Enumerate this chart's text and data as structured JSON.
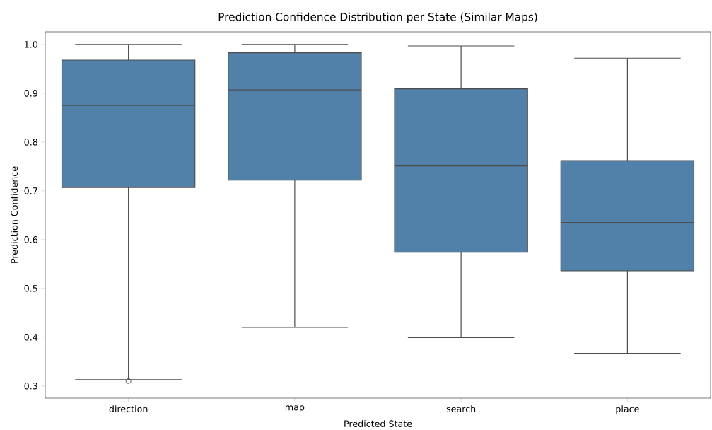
{
  "chart_data": {
    "type": "box",
    "title": "Prediction Confidence Distribution per State (Similar Maps)",
    "xlabel": "Predicted State",
    "ylabel": "Prediction Confidence",
    "categories": [
      "direction",
      "map",
      "search",
      "place"
    ],
    "color": "#5181a9",
    "boxes": [
      {
        "low": 0.313,
        "q1": 0.707,
        "median": 0.875,
        "q3": 0.968,
        "high": 1.0,
        "outliers": [
          0.31
        ]
      },
      {
        "low": 0.42,
        "q1": 0.722,
        "median": 0.907,
        "q3": 0.983,
        "high": 1.0
      },
      {
        "low": 0.399,
        "q1": 0.574,
        "median": 0.751,
        "q3": 0.909,
        "high": 0.997
      },
      {
        "low": 0.367,
        "q1": 0.536,
        "median": 0.635,
        "q3": 0.762,
        "high": 0.972
      }
    ],
    "ylim": [
      0.275,
      1.026
    ],
    "yticks": [
      {
        "value": 0.3,
        "label": "0.3"
      },
      {
        "value": 0.4,
        "label": "0.4"
      },
      {
        "value": 0.5,
        "label": "0.5"
      },
      {
        "value": 0.6,
        "label": "0.6"
      },
      {
        "value": 0.7,
        "label": "0.7"
      },
      {
        "value": 0.8,
        "label": "0.8"
      },
      {
        "value": 0.9,
        "label": "0.9"
      },
      {
        "value": 1.0,
        "label": "1.0"
      }
    ],
    "grid": false
  }
}
